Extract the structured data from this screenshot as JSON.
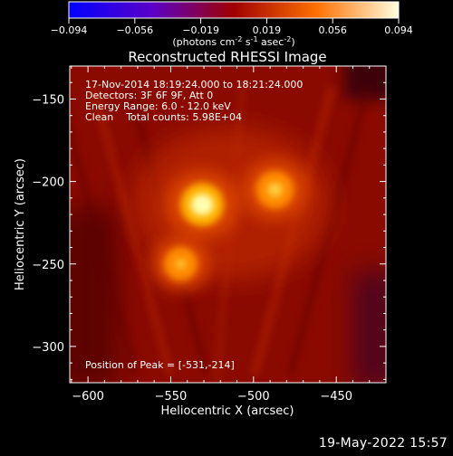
{
  "colorbar": {
    "ticks": [
      "-0.094",
      "-0.056",
      "-0.019",
      "0.019",
      "0.056",
      "0.094"
    ],
    "unit_main": "(photons cm",
    "unit_exp1": "-2",
    "unit_mid": " s",
    "unit_exp2": "-1",
    "unit_end": " asec",
    "unit_exp3": "-2",
    "unit_close": ")"
  },
  "chart_data": {
    "type": "heatmap",
    "title": "Reconstructed RHESSI Image",
    "xlabel": "Heliocentric X (arcsec)",
    "ylabel": "Heliocentric Y (arcsec)",
    "xlim": [
      -611,
      -420
    ],
    "ylim": [
      -322,
      -130
    ],
    "x_ticks": [
      -600,
      -550,
      -500,
      -450
    ],
    "y_ticks": [
      -150,
      -200,
      -250,
      -300
    ],
    "x_tick_labels": [
      "−600",
      "−550",
      "−500",
      "−450"
    ],
    "y_tick_labels": [
      "−150",
      "−200",
      "−250",
      "−300"
    ],
    "value_range": [
      -0.094,
      0.094
    ],
    "sources": [
      {
        "x": -531,
        "y": -214,
        "peak": 0.094
      },
      {
        "x": -487,
        "y": -205,
        "peak": 0.07
      },
      {
        "x": -544,
        "y": -250,
        "peak": 0.05
      }
    ],
    "info": {
      "time_range": "17-Nov-2014 18:19:24.000 to 18:21:24.000",
      "detectors": "Detectors: 3F 6F 9F, Att 0",
      "energy": "Energy Range: 6.0 - 12.0 keV",
      "method_counts": "Clean    Total counts: 5.98E+04",
      "peak": "Position of Peak = [-531,-214]"
    }
  },
  "footer": {
    "date": "19-May-2022 15:57"
  }
}
